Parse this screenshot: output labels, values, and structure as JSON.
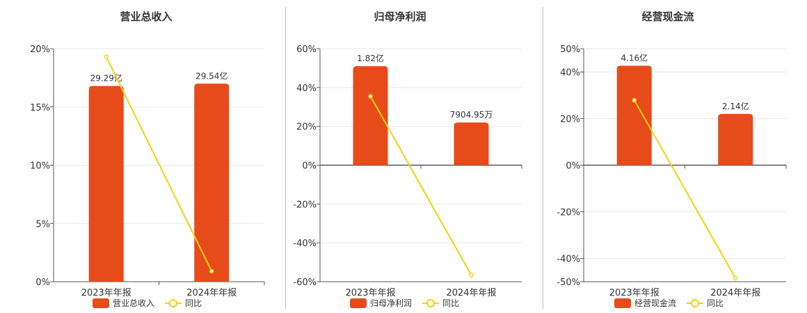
{
  "colors": {
    "bar": "#e84b1a",
    "line": "#f5d20a",
    "grid": "#e8e8e8",
    "axis": "#555555"
  },
  "chart_data": [
    {
      "type": "bar",
      "title": "营业总收入",
      "categories": [
        "2023年年报",
        "2024年年报"
      ],
      "bar_labels": [
        "29.29亿",
        "29.54亿"
      ],
      "yticks": [
        "0%",
        "5%",
        "10%",
        "15%",
        "20%"
      ],
      "ylim": [
        0,
        20
      ],
      "series": [
        {
          "name": "营业总收入",
          "type": "bar",
          "values": [
            16.8,
            17.0
          ]
        },
        {
          "name": "同比",
          "type": "line",
          "values": [
            19.3,
            0.9
          ]
        }
      ],
      "legend": "bottom"
    },
    {
      "type": "bar",
      "title": "归母净利润",
      "categories": [
        "2023年年报",
        "2024年年报"
      ],
      "bar_labels": [
        "1.82亿",
        "7904.95万"
      ],
      "yticks": [
        "-60%",
        "-40%",
        "-20%",
        "0%",
        "20%",
        "40%",
        "60%"
      ],
      "ylim": [
        -60,
        60
      ],
      "series": [
        {
          "name": "归母净利润",
          "type": "bar",
          "values": [
            51,
            22
          ]
        },
        {
          "name": "同比",
          "type": "line",
          "values": [
            35.5,
            -56.6
          ]
        }
      ],
      "legend": "bottom"
    },
    {
      "type": "bar",
      "title": "经营现金流",
      "categories": [
        "2023年年报",
        "2024年年报"
      ],
      "bar_labels": [
        "4.16亿",
        "2.14亿"
      ],
      "yticks": [
        "-50%",
        "-40%",
        "-20%",
        "0%",
        "20%",
        "40%",
        "50%"
      ],
      "ylim": [
        -50,
        50
      ],
      "series": [
        {
          "name": "经营现金流",
          "type": "bar",
          "values": [
            42.7,
            22
          ]
        },
        {
          "name": "同比",
          "type": "line",
          "values": [
            27.9,
            -48.5
          ]
        }
      ],
      "legend": "bottom"
    }
  ]
}
